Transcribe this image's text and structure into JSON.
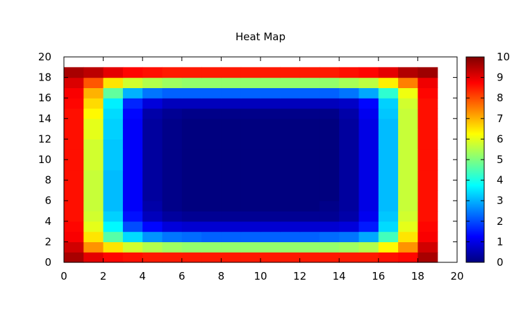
{
  "chart_data": {
    "type": "heatmap",
    "title": "Heat Map",
    "xlabel": "",
    "ylabel": "",
    "xlim": [
      0,
      20
    ],
    "ylim": [
      0,
      20
    ],
    "x_ticks": [
      "0",
      "2",
      "4",
      "6",
      "8",
      "10",
      "12",
      "14",
      "16",
      "18",
      "20"
    ],
    "y_ticks": [
      "0",
      "2",
      "4",
      "6",
      "8",
      "10",
      "12",
      "14",
      "16",
      "18",
      "20"
    ],
    "colorbar": {
      "range": [
        0,
        10
      ],
      "ticks": [
        "0",
        "1",
        "2",
        "3",
        "4",
        "5",
        "6",
        "7",
        "8",
        "9",
        "10"
      ],
      "colormap": "jet",
      "stops": [
        "#00007f",
        "#0000ff",
        "#007fff",
        "#00ffff",
        "#7fff7f",
        "#ffff00",
        "#ff7f00",
        "#ff0000",
        "#7f0000"
      ]
    },
    "grid": false,
    "cell_width": 1,
    "cell_height": 1,
    "values": [
      [
        9.6,
        9.0,
        8.7,
        8.6,
        8.5,
        8.5,
        8.5,
        8.5,
        8.5,
        8.5,
        8.5,
        8.5,
        8.5,
        8.5,
        8.5,
        8.5,
        8.6,
        8.7,
        9.6
      ],
      [
        9.2,
        7.3,
        6.5,
        5.8,
        5.5,
        5.3,
        5.2,
        5.2,
        5.2,
        5.2,
        5.2,
        5.2,
        5.2,
        5.2,
        5.3,
        5.5,
        6.3,
        7.3,
        9.2
      ],
      [
        8.8,
        6.5,
        4.6,
        3.4,
        2.7,
        2.4,
        2.3,
        2.2,
        2.2,
        2.2,
        2.2,
        2.2,
        2.2,
        2.3,
        2.4,
        2.9,
        4.4,
        6.5,
        8.8
      ],
      [
        8.7,
        6.0,
        3.7,
        2.0,
        1.3,
        0.9,
        0.8,
        0.8,
        0.8,
        0.8,
        0.8,
        0.8,
        0.8,
        0.8,
        0.9,
        1.5,
        3.4,
        6.0,
        8.7
      ],
      [
        8.6,
        5.8,
        3.3,
        1.4,
        0.6,
        0.3,
        0.2,
        0.2,
        0.2,
        0.2,
        0.2,
        0.2,
        0.2,
        0.2,
        0.4,
        1.1,
        3.2,
        5.8,
        8.6
      ],
      [
        8.6,
        5.7,
        3.1,
        1.2,
        0.4,
        0.1,
        0.0,
        0.0,
        0.0,
        0.0,
        0.0,
        0.0,
        0.0,
        0.1,
        0.3,
        1.0,
        3.1,
        5.7,
        8.6
      ],
      [
        8.6,
        5.7,
        3.1,
        1.2,
        0.3,
        0.1,
        0.0,
        0.0,
        0.0,
        0.0,
        0.0,
        0.0,
        0.0,
        0.0,
        0.3,
        1.0,
        3.1,
        5.7,
        8.6
      ],
      [
        8.6,
        5.7,
        3.1,
        1.2,
        0.3,
        0.1,
        0.0,
        0.0,
        0.0,
        0.0,
        0.0,
        0.0,
        0.0,
        0.0,
        0.3,
        1.0,
        3.1,
        5.7,
        8.6
      ],
      [
        8.6,
        5.7,
        3.1,
        1.2,
        0.3,
        0.1,
        0.0,
        0.0,
        0.0,
        0.0,
        0.0,
        0.0,
        0.0,
        0.0,
        0.3,
        1.0,
        3.1,
        5.7,
        8.6
      ],
      [
        8.6,
        5.8,
        3.2,
        1.2,
        0.3,
        0.1,
        0.0,
        0.0,
        0.0,
        0.0,
        0.0,
        0.0,
        0.0,
        0.0,
        0.3,
        1.0,
        3.1,
        5.7,
        8.6
      ],
      [
        8.6,
        5.8,
        3.2,
        1.2,
        0.3,
        0.1,
        0.0,
        0.0,
        0.0,
        0.0,
        0.0,
        0.0,
        0.0,
        0.0,
        0.3,
        1.0,
        3.1,
        5.7,
        8.6
      ],
      [
        8.6,
        5.8,
        3.2,
        1.2,
        0.3,
        0.1,
        0.0,
        0.0,
        0.0,
        0.0,
        0.0,
        0.0,
        0.0,
        0.0,
        0.3,
        1.0,
        3.1,
        5.7,
        8.6
      ],
      [
        8.6,
        6.0,
        3.3,
        1.2,
        0.3,
        0.1,
        0.0,
        0.0,
        0.0,
        0.0,
        0.0,
        0.0,
        0.0,
        0.0,
        0.3,
        1.0,
        3.1,
        5.7,
        8.6
      ],
      [
        8.6,
        6.0,
        3.3,
        1.2,
        0.3,
        0.1,
        0.0,
        0.0,
        0.0,
        0.0,
        0.0,
        0.0,
        0.0,
        0.0,
        0.3,
        1.0,
        3.1,
        5.7,
        8.6
      ],
      [
        8.6,
        6.3,
        3.4,
        1.3,
        0.4,
        0.2,
        0.1,
        0.1,
        0.1,
        0.1,
        0.1,
        0.1,
        0.1,
        0.1,
        0.4,
        1.1,
        3.2,
        5.7,
        8.6
      ],
      [
        8.7,
        6.6,
        3.6,
        1.6,
        0.9,
        0.6,
        0.6,
        0.6,
        0.6,
        0.6,
        0.6,
        0.6,
        0.6,
        0.6,
        0.7,
        1.3,
        3.3,
        5.8,
        8.6
      ],
      [
        8.8,
        7.0,
        4.7,
        3.0,
        2.4,
        2.2,
        2.2,
        2.2,
        2.2,
        2.2,
        2.2,
        2.2,
        2.2,
        2.2,
        2.4,
        2.9,
        4.2,
        6.1,
        8.7
      ],
      [
        9.1,
        7.9,
        6.5,
        5.8,
        5.5,
        5.3,
        5.2,
        5.2,
        5.2,
        5.2,
        5.2,
        5.2,
        5.2,
        5.2,
        5.4,
        5.6,
        6.4,
        7.5,
        8.9
      ],
      [
        9.6,
        9.4,
        9.0,
        8.7,
        8.6,
        8.5,
        8.5,
        8.5,
        8.5,
        8.5,
        8.5,
        8.5,
        8.5,
        8.5,
        8.6,
        8.7,
        9.0,
        9.5,
        9.7
      ]
    ]
  }
}
